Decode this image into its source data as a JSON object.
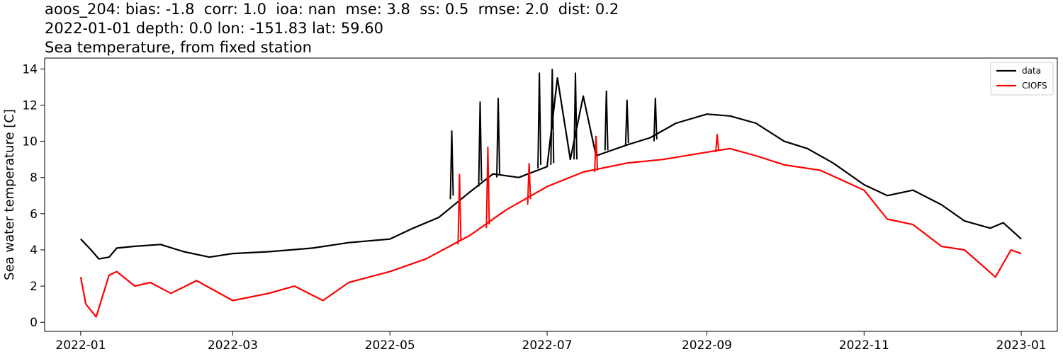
{
  "header": {
    "line1": "aoos_204: bias: -1.8  corr: 1.0  ioa: nan  mse: 3.8  ss: 0.5  rmse: 2.0  dist: 0.2",
    "line2": "2022-01-01 depth: 0.0 lon: -151.83 lat: 59.60",
    "line3": "Sea temperature, from fixed station"
  },
  "chart_data": {
    "type": "line",
    "title": "Sea temperature, from fixed station",
    "xlabel": "",
    "ylabel": "Sea water temperature [C]",
    "xlim": [
      "2021-12-18",
      "2023-01-15"
    ],
    "ylim": [
      -0.5,
      14.6
    ],
    "x_ticks": [
      "2022-01",
      "2022-03",
      "2022-05",
      "2022-07",
      "2022-09",
      "2022-11",
      "2023-01"
    ],
    "x_tick_dates": [
      "2022-01-01",
      "2022-03-01",
      "2022-05-01",
      "2022-07-01",
      "2022-09-01",
      "2022-11-01",
      "2023-01-01"
    ],
    "y_ticks": [
      0,
      2,
      4,
      6,
      8,
      10,
      12,
      14
    ],
    "grid": false,
    "legend_position": "top-right",
    "colors": {
      "data": "#000000",
      "CIOFS": "#ff0000"
    },
    "series": [
      {
        "name": "data",
        "color": "#000000",
        "x": [
          "2022-01-01",
          "2022-01-05",
          "2022-01-08",
          "2022-01-12",
          "2022-01-15",
          "2022-01-22",
          "2022-02-01",
          "2022-02-10",
          "2022-02-20",
          "2022-03-01",
          "2022-03-15",
          "2022-04-01",
          "2022-04-15",
          "2022-05-01",
          "2022-05-10",
          "2022-05-20",
          "2022-06-01",
          "2022-06-10",
          "2022-06-20",
          "2022-07-01",
          "2022-07-05",
          "2022-07-10",
          "2022-07-15",
          "2022-07-20",
          "2022-08-01",
          "2022-08-10",
          "2022-08-20",
          "2022-09-01",
          "2022-09-10",
          "2022-09-20",
          "2022-10-01",
          "2022-10-10",
          "2022-10-20",
          "2022-11-01",
          "2022-11-10",
          "2022-11-20",
          "2022-12-01",
          "2022-12-10",
          "2022-12-20",
          "2022-12-25",
          "2023-01-01"
        ],
        "values": [
          4.6,
          4.0,
          3.5,
          3.6,
          4.1,
          4.2,
          4.3,
          3.9,
          3.6,
          3.8,
          3.9,
          4.1,
          4.4,
          4.6,
          5.2,
          5.8,
          7.2,
          8.2,
          8.0,
          8.6,
          13.5,
          9.0,
          12.5,
          9.2,
          9.8,
          10.2,
          11.0,
          11.5,
          11.4,
          11.0,
          10.0,
          9.6,
          8.8,
          7.6,
          7.0,
          7.3,
          6.5,
          5.6,
          5.2,
          5.5,
          4.6
        ],
        "spikes": [
          {
            "x": "2022-05-25",
            "values": [
              6.8,
              10.6,
              7.0
            ]
          },
          {
            "x": "2022-06-05",
            "values": [
              7.5,
              12.2,
              7.8
            ]
          },
          {
            "x": "2022-06-12",
            "values": [
              8.0,
              12.4,
              8.2
            ]
          },
          {
            "x": "2022-06-28",
            "values": [
              8.5,
              13.8,
              8.7
            ]
          },
          {
            "x": "2022-07-03",
            "values": [
              8.7,
              14.0,
              8.8
            ]
          },
          {
            "x": "2022-07-12",
            "values": [
              9.0,
              13.8,
              9.0
            ]
          },
          {
            "x": "2022-07-24",
            "values": [
              9.5,
              12.8,
              9.5
            ]
          },
          {
            "x": "2022-08-01",
            "values": [
              9.8,
              12.3,
              9.9
            ]
          },
          {
            "x": "2022-08-12",
            "values": [
              10.0,
              12.4,
              10.1
            ]
          }
        ]
      },
      {
        "name": "CIOFS",
        "color": "#ff0000",
        "x": [
          "2022-01-01",
          "2022-01-03",
          "2022-01-07",
          "2022-01-12",
          "2022-01-15",
          "2022-01-22",
          "2022-01-28",
          "2022-02-05",
          "2022-02-15",
          "2022-03-01",
          "2022-03-15",
          "2022-03-25",
          "2022-04-05",
          "2022-04-15",
          "2022-05-01",
          "2022-05-15",
          "2022-06-01",
          "2022-06-15",
          "2022-07-01",
          "2022-07-15",
          "2022-08-01",
          "2022-08-15",
          "2022-09-01",
          "2022-09-10",
          "2022-09-20",
          "2022-10-01",
          "2022-10-15",
          "2022-11-01",
          "2022-11-10",
          "2022-11-20",
          "2022-12-01",
          "2022-12-10",
          "2022-12-22",
          "2022-12-28",
          "2023-01-01"
        ],
        "values": [
          2.5,
          1.0,
          0.3,
          2.6,
          2.8,
          2.0,
          2.2,
          1.6,
          2.3,
          1.2,
          1.6,
          2.0,
          1.2,
          2.2,
          2.8,
          3.5,
          4.8,
          6.2,
          7.5,
          8.3,
          8.8,
          9.0,
          9.4,
          9.6,
          9.2,
          8.7,
          8.4,
          7.3,
          5.7,
          5.4,
          4.2,
          4.0,
          2.5,
          4.0,
          3.8
        ],
        "spikes": [
          {
            "x": "2022-05-28",
            "values": [
              4.3,
              8.2,
              4.5
            ]
          },
          {
            "x": "2022-06-08",
            "values": [
              5.2,
              9.7,
              5.4
            ]
          },
          {
            "x": "2022-06-24",
            "values": [
              6.5,
              8.8,
              6.8
            ]
          },
          {
            "x": "2022-07-20",
            "values": [
              8.3,
              10.3,
              8.4
            ]
          },
          {
            "x": "2022-09-05",
            "values": [
              9.4,
              10.4,
              9.5
            ]
          }
        ]
      }
    ]
  }
}
